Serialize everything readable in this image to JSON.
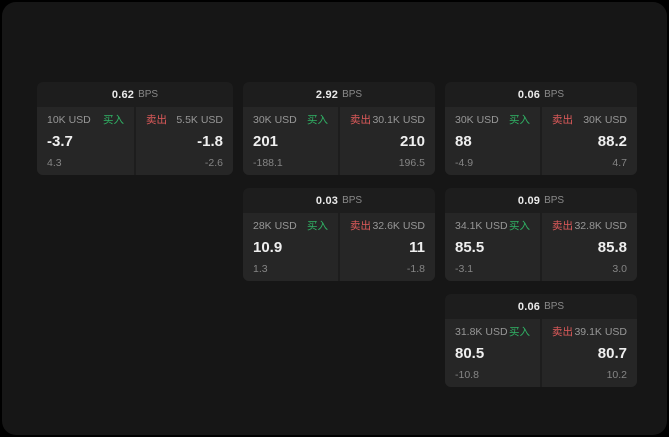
{
  "labels": {
    "bps": "BPS",
    "buy": "买入",
    "sell": "卖出"
  },
  "colors": {
    "buy": "#30b365",
    "sell": "#e05b5b",
    "window_bg": "#161616",
    "card_bg": "#1d1d1d",
    "panel_bg": "#262626"
  },
  "cards": [
    {
      "bps": "0.62",
      "buy": {
        "amount": "10K USD",
        "value": "-3.7",
        "delta": "4.3"
      },
      "sell": {
        "amount": "5.5K USD",
        "value": "-1.8",
        "delta": "-2.6"
      }
    },
    {
      "bps": "2.92",
      "buy": {
        "amount": "30K USD",
        "value": "201",
        "delta": "-188.1"
      },
      "sell": {
        "amount": "30.1K USD",
        "value": "210",
        "delta": "196.5"
      }
    },
    {
      "bps": "0.06",
      "buy": {
        "amount": "30K USD",
        "value": "88",
        "delta": "-4.9"
      },
      "sell": {
        "amount": "30K USD",
        "value": "88.2",
        "delta": "4.7"
      }
    },
    {
      "bps": "0.03",
      "buy": {
        "amount": "28K USD",
        "value": "10.9",
        "delta": "1.3"
      },
      "sell": {
        "amount": "32.6K USD",
        "value": "11",
        "delta": "-1.8"
      }
    },
    {
      "bps": "0.09",
      "buy": {
        "amount": "34.1K USD",
        "value": "85.5",
        "delta": "-3.1"
      },
      "sell": {
        "amount": "32.8K USD",
        "value": "85.8",
        "delta": "3.0"
      }
    },
    {
      "bps": "0.06",
      "buy": {
        "amount": "31.8K USD",
        "value": "80.5",
        "delta": "-10.8"
      },
      "sell": {
        "amount": "39.1K USD",
        "value": "80.7",
        "delta": "10.2"
      }
    }
  ]
}
